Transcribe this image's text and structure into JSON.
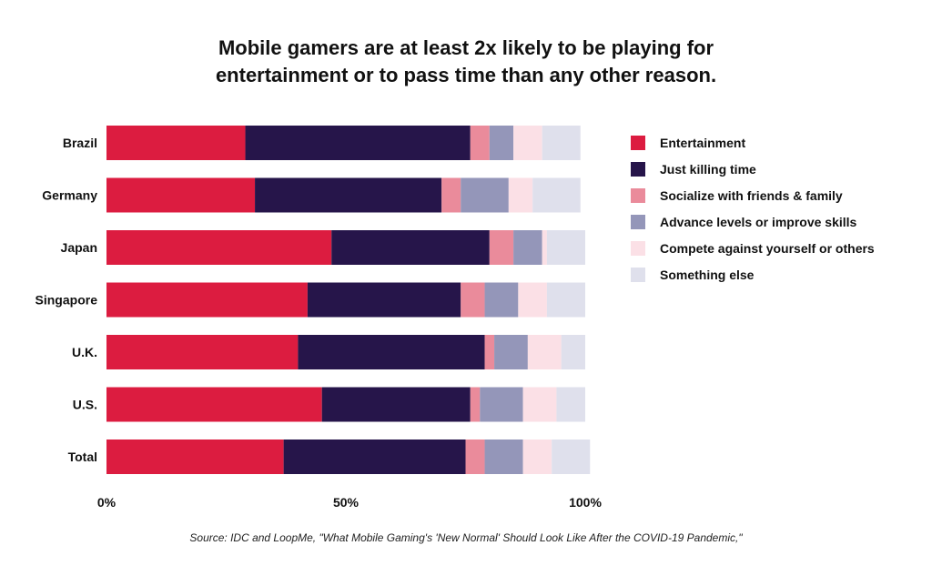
{
  "title_line1": "Mobile gamers are at least 2x likely to be playing for",
  "title_line2": "entertainment or to pass time than any other reason.",
  "source": "Source: IDC and LoopMe, \"What Mobile Gaming's 'New Normal' Should Look Like After the COVID-19 Pandemic,\"",
  "chart_data": {
    "type": "bar",
    "orientation": "horizontal",
    "stacked": true,
    "categories": [
      "Brazil",
      "Germany",
      "Japan",
      "Singapore",
      "U.K.",
      "U.S.",
      "Total"
    ],
    "series": [
      {
        "name": "Entertainment",
        "color": "#dc1c40",
        "values": [
          29,
          31,
          47,
          42,
          40,
          45,
          37
        ]
      },
      {
        "name": "Just killing time",
        "color": "#26154a",
        "values": [
          47,
          39,
          33,
          32,
          39,
          31,
          38
        ]
      },
      {
        "name": "Socialize with friends & family",
        "color": "#ea8b9b",
        "values": [
          4,
          4,
          5,
          5,
          2,
          2,
          4
        ]
      },
      {
        "name": "Advance levels or improve skills",
        "color": "#9496b9",
        "values": [
          5,
          10,
          6,
          7,
          7,
          9,
          8
        ]
      },
      {
        "name": "Compete against yourself or others",
        "color": "#fbe0e6",
        "values": [
          6,
          5,
          1,
          6,
          7,
          7,
          6
        ]
      },
      {
        "name": "Something else",
        "color": "#dfe0ec",
        "values": [
          8,
          10,
          8,
          8,
          5,
          6,
          8
        ]
      }
    ],
    "x_ticks": [
      "0%",
      "50%",
      "100%"
    ],
    "xlim": [
      0,
      100
    ],
    "legend_position": "right",
    "grid": false
  }
}
